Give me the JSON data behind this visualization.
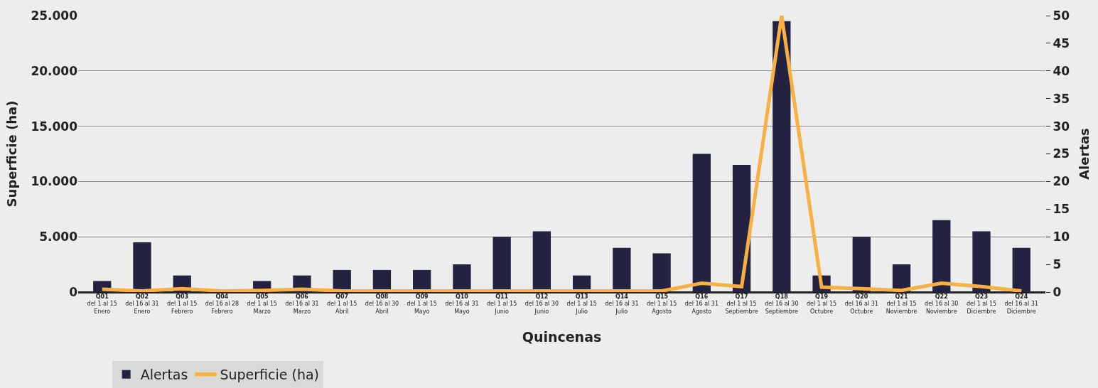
{
  "chart_data": {
    "type": "bar",
    "xlabel": "Quincenas",
    "ylabel": "Superficie (ha)",
    "y2label": "Alertas",
    "categories": [
      "Q01\ndel 1 al 15\nEnero",
      "Q02\ndel 16 al 31\nEnero",
      "Q03\ndel 1 al 15\nFebrero",
      "Q04\ndel 16 al 28\nFebrero",
      "Q05\ndel 1 al 15\nMarzo",
      "Q06\ndel 16 al 31\nMarzo",
      "Q07\ndel 1 al 15\nAbril",
      "Q08\ndel 16 al 30\nAbril",
      "Q09\ndel 1 al 15\nMayo",
      "Q10\ndel 16 al 31\nMayo",
      "Q11\ndel 1 al 15\nJunio",
      "Q12\ndel 16 al 30\nJunio",
      "Q13\ndel 1 al 15\nJulio",
      "Q14\ndel 16 al 31\nJulio",
      "Q15\ndel 1 al 15\nAgosto",
      "Q16\ndel 16 al 31\nAgosto",
      "Q17\ndel 1 al 15\nSeptiembre",
      "Q18\ndel 16 al 30\nSeptiembre",
      "Q19\ndel 1 al 15\nOctubre",
      "Q20\ndel 16 al 31\nOctubre",
      "Q21\ndel 1 al 15\nNoviembre",
      "Q22\ndel 16 al 30\nNoviembre",
      "Q23\ndel 1 al 15\nDiciembre",
      "Q24\ndel 16 al 31\nDiciembre"
    ],
    "series": [
      {
        "name": "Alertas",
        "axis": "y2",
        "color": "#232241",
        "values": [
          2,
          9,
          3,
          0,
          2,
          3,
          4,
          4,
          4,
          5,
          10,
          11,
          3,
          8,
          7,
          25,
          23,
          49,
          3,
          10,
          5,
          13,
          11,
          8
        ]
      },
      {
        "name": "Superficie (ha)",
        "type": "line",
        "axis": "y",
        "color": "#f9b042",
        "values": [
          250,
          100,
          300,
          100,
          150,
          250,
          100,
          100,
          100,
          100,
          100,
          100,
          100,
          100,
          100,
          800,
          500,
          25000,
          450,
          300,
          150,
          800,
          500,
          100
        ]
      }
    ],
    "ylim": [
      0,
      25000
    ],
    "yticks": [
      0,
      {
        "value": 5000,
        "label": "5.000"
      },
      {
        "value": 10000,
        "label": "10.000"
      },
      {
        "value": 15000,
        "label": "15.000"
      },
      {
        "value": 20000,
        "label": "20.000"
      },
      {
        "value": 25000,
        "label": "25.000"
      }
    ],
    "y2lim": [
      0,
      50
    ],
    "y2ticks": [
      0,
      5,
      10,
      15,
      20,
      25,
      30,
      35,
      40,
      45,
      50
    ],
    "grid": "y",
    "legend": "bottom left"
  }
}
